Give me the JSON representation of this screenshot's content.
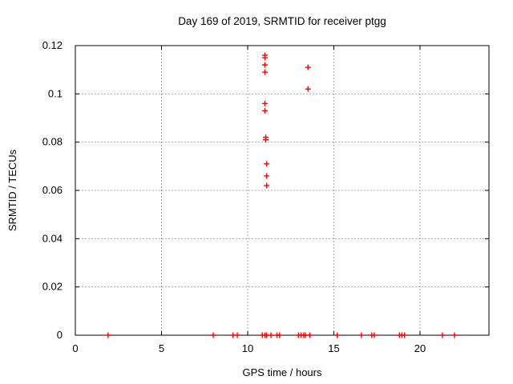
{
  "chart_data": {
    "type": "scatter",
    "title": "Day 169 of 2019, SRMTID for receiver ptgg",
    "xlabel": "GPS time / hours",
    "ylabel": "SRMTID / TECUs",
    "xlim": [
      0,
      24
    ],
    "ylim": [
      0,
      0.12
    ],
    "xticks": [
      {
        "v": 0,
        "label": "0"
      },
      {
        "v": 5,
        "label": "5"
      },
      {
        "v": 10,
        "label": "10"
      },
      {
        "v": 15,
        "label": "15"
      },
      {
        "v": 20,
        "label": "20"
      }
    ],
    "yticks": [
      {
        "v": 0,
        "label": "0"
      },
      {
        "v": 0.02,
        "label": "0.02"
      },
      {
        "v": 0.04,
        "label": "0.04"
      },
      {
        "v": 0.06,
        "label": "0.06"
      },
      {
        "v": 0.08,
        "label": "0.08"
      },
      {
        "v": 0.1,
        "label": "0.1"
      },
      {
        "v": 0.12,
        "label": "0.12"
      }
    ],
    "grid": true,
    "legend": "none",
    "marker": "plus",
    "colors": {
      "background": "#ffffff",
      "border": "#000000",
      "grid": "#a6a6a6",
      "series": "#ff0000",
      "text": "#000000"
    },
    "series": [
      {
        "name": "SRMTID",
        "color": "#ff0000",
        "points": [
          [
            11.0,
            0.116
          ],
          [
            11.0,
            0.115
          ],
          [
            11.0,
            0.112
          ],
          [
            11.0,
            0.109
          ],
          [
            11.0,
            0.096
          ],
          [
            11.0,
            0.093
          ],
          [
            11.05,
            0.082
          ],
          [
            11.05,
            0.081
          ],
          [
            11.1,
            0.071
          ],
          [
            11.1,
            0.066
          ],
          [
            11.1,
            0.062
          ],
          [
            13.5,
            0.111
          ],
          [
            13.5,
            0.102
          ],
          [
            1.9,
            0
          ],
          [
            8.0,
            0
          ],
          [
            9.15,
            0
          ],
          [
            9.4,
            0
          ],
          [
            10.85,
            0
          ],
          [
            11.0,
            0
          ],
          [
            11.1,
            0
          ],
          [
            11.35,
            0
          ],
          [
            11.7,
            0
          ],
          [
            11.85,
            0
          ],
          [
            12.95,
            0
          ],
          [
            13.1,
            0
          ],
          [
            13.25,
            0
          ],
          [
            13.35,
            0
          ],
          [
            13.6,
            0
          ],
          [
            15.2,
            0
          ],
          [
            16.6,
            0
          ],
          [
            17.2,
            0
          ],
          [
            17.35,
            0
          ],
          [
            18.8,
            0
          ],
          [
            18.95,
            0
          ],
          [
            19.1,
            0
          ],
          [
            21.3,
            0
          ],
          [
            22.0,
            0
          ]
        ]
      }
    ]
  }
}
